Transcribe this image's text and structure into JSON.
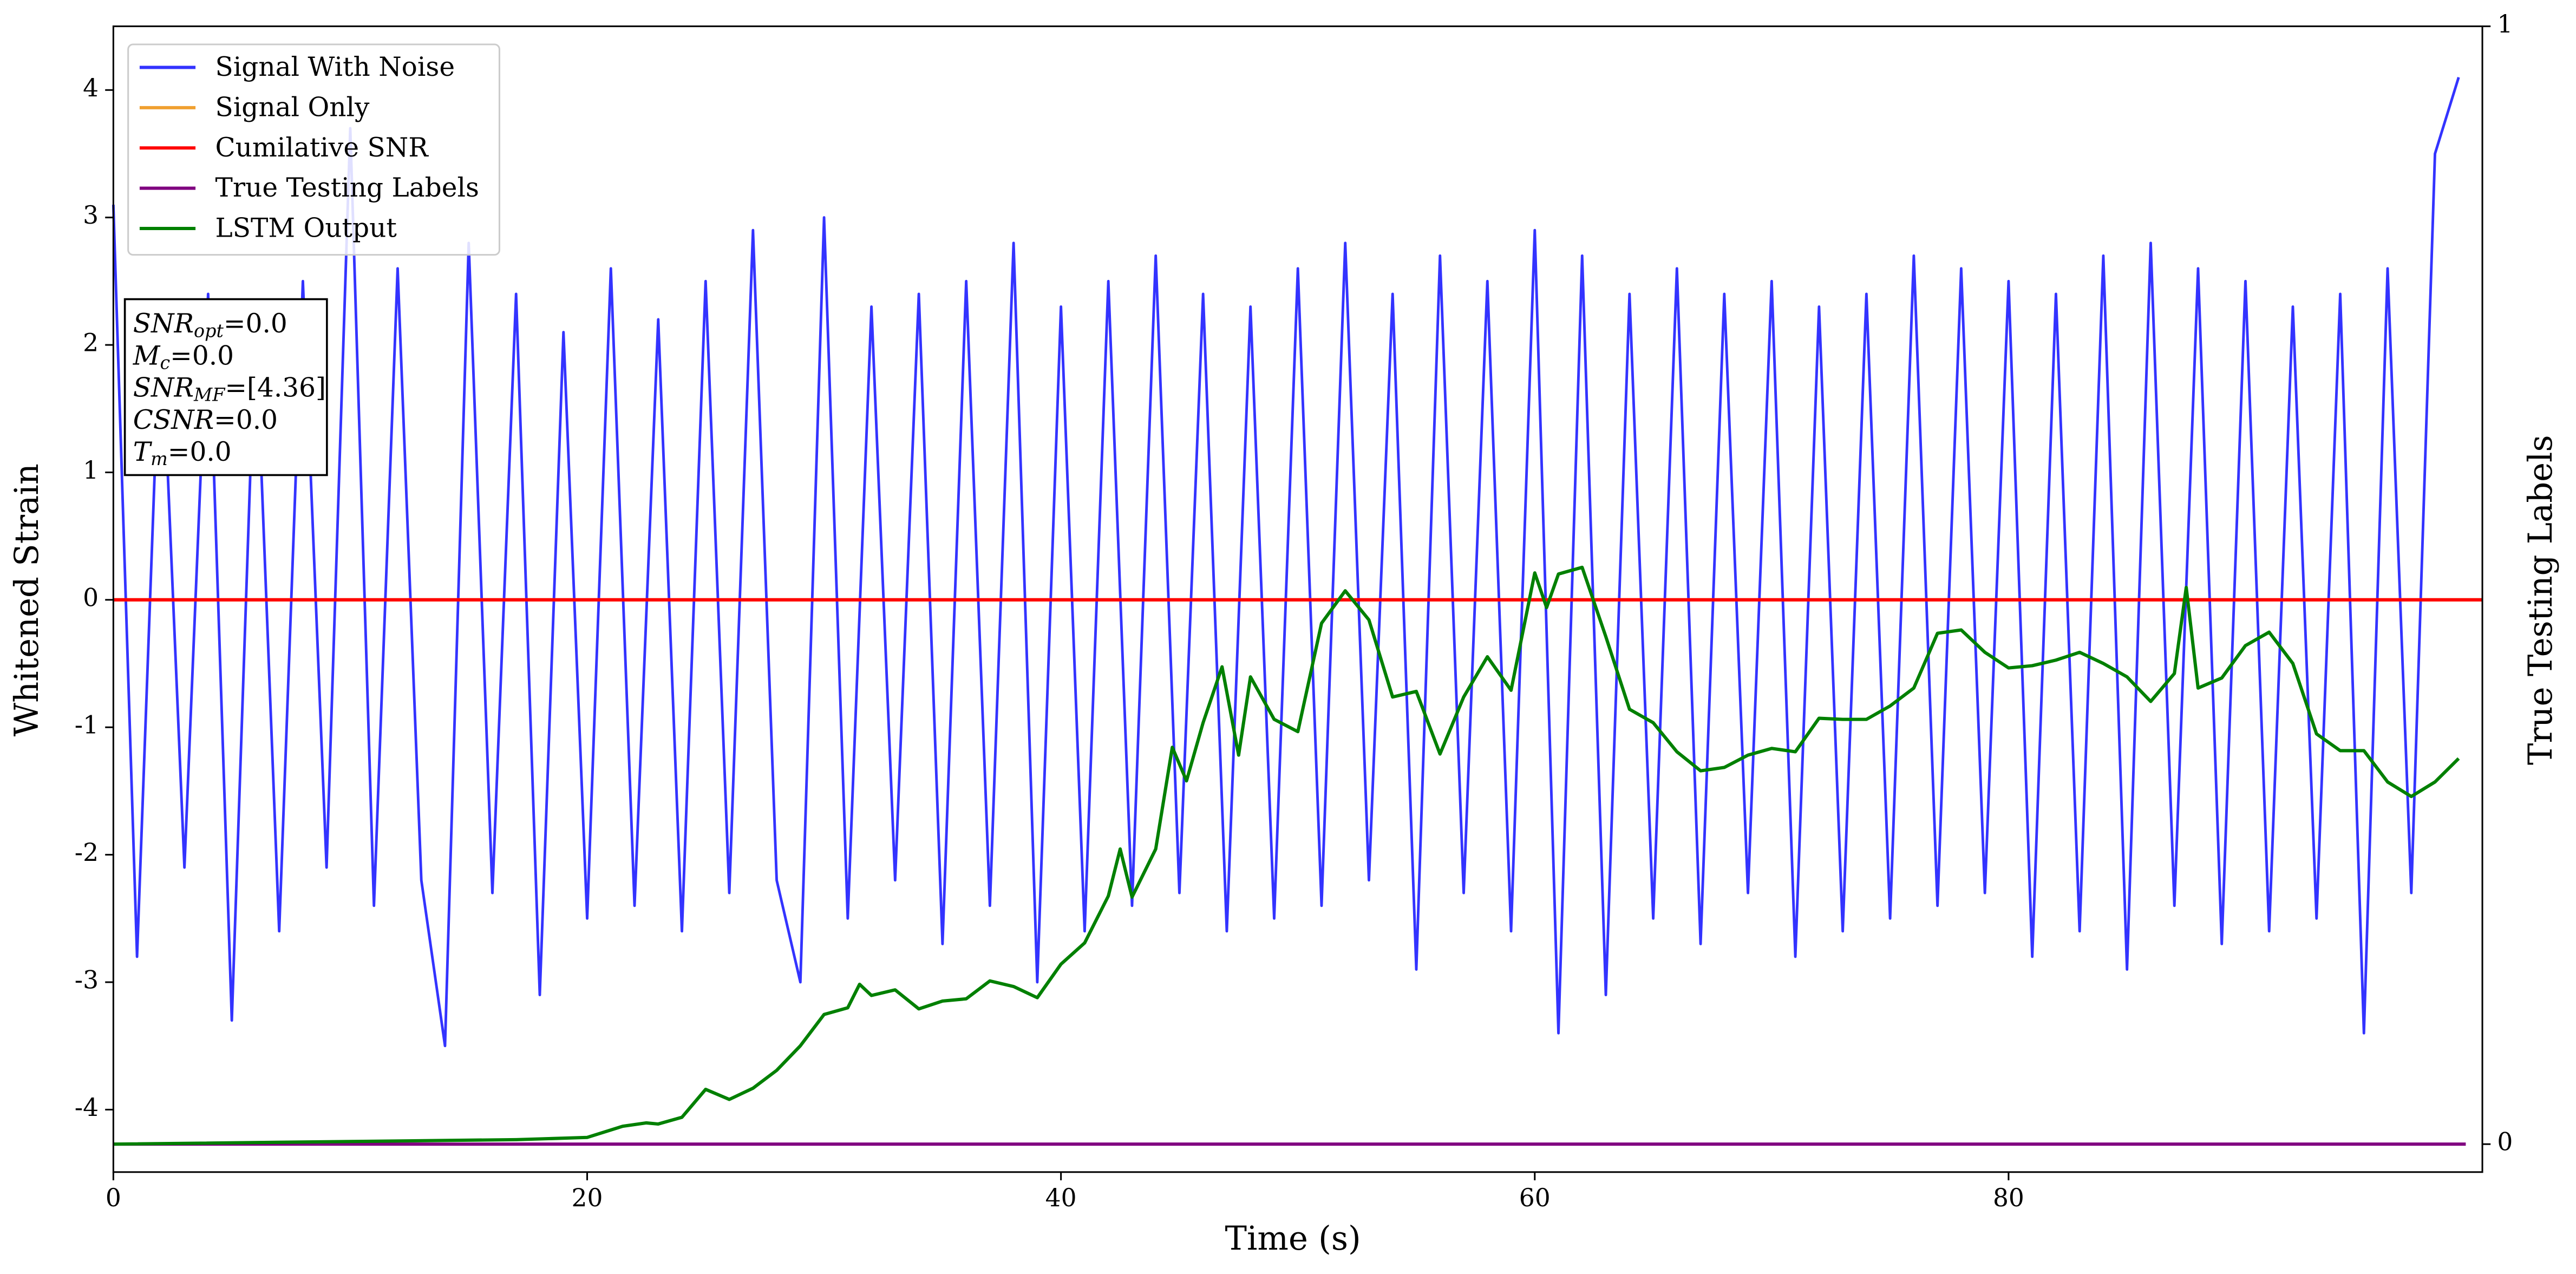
{
  "chart_data": {
    "type": "line",
    "xlabel": "Time (s)",
    "ylabel": "Whitened Strain",
    "y2label": "True Testing Labels",
    "xlim": [
      0,
      100
    ],
    "xticks": [
      0,
      20,
      40,
      60,
      80
    ],
    "ylim": [
      -4.49,
      4.5
    ],
    "yticks": [
      -4,
      -3,
      -2,
      -1,
      0,
      1,
      2,
      3,
      4
    ],
    "y2lim": [
      -0.025,
      1.0
    ],
    "y2ticks": [
      0,
      1
    ],
    "legend": "upper left",
    "annotations": [
      {
        "symbol": "SNR",
        "sub": "opt",
        "text": "=0.0"
      },
      {
        "symbol": "M",
        "sub": "c",
        "text": "=0.0"
      },
      {
        "symbol": "SNR",
        "sub": "MF",
        "text": "=[4.36]"
      },
      {
        "symbol": "CSNR",
        "sub": "",
        "text": "=0.0"
      },
      {
        "symbol": "T",
        "sub": "m",
        "text": "=0.0"
      }
    ],
    "series": [
      {
        "name": "Signal With Noise",
        "color": "#3333ff",
        "axis": "y",
        "x": [
          0,
          1,
          2,
          3,
          4,
          5,
          6,
          7,
          8,
          9,
          10,
          11,
          12,
          13,
          14,
          15,
          16,
          17,
          18,
          19,
          20,
          21,
          22,
          23,
          24,
          25,
          26,
          27,
          28,
          29,
          30,
          31,
          32,
          33,
          34,
          35,
          36,
          37,
          38,
          39,
          40,
          41,
          42,
          43,
          44,
          45,
          46,
          47,
          48,
          49,
          50,
          51,
          52,
          53,
          54,
          55,
          56,
          57,
          58,
          59,
          60,
          61,
          62,
          63,
          64,
          65,
          66,
          67,
          68,
          69,
          70,
          71,
          72,
          73,
          74,
          75,
          76,
          77,
          78,
          79,
          80,
          81,
          82,
          83,
          84,
          85,
          86,
          87,
          88,
          89,
          90,
          91,
          92,
          93,
          94,
          95,
          96,
          97,
          98,
          99
        ],
        "values": [
          3.1,
          -2.8,
          2.3,
          -2.1,
          2.4,
          -3.3,
          2.2,
          -2.6,
          2.5,
          -2.1,
          3.7,
          -2.4,
          2.6,
          -2.2,
          -3.5,
          2.8,
          -2.3,
          2.4,
          -3.1,
          2.1,
          -2.5,
          2.6,
          -2.4,
          2.2,
          -2.6,
          2.5,
          -2.3,
          2.9,
          -2.2,
          -3.0,
          3.0,
          -2.5,
          2.3,
          -2.2,
          2.4,
          -2.7,
          2.5,
          -2.4,
          2.8,
          -3.0,
          2.3,
          -2.6,
          2.5,
          -2.4,
          2.7,
          -2.3,
          2.4,
          -2.6,
          2.3,
          -2.5,
          2.6,
          -2.4,
          2.8,
          -2.2,
          2.4,
          -2.9,
          2.7,
          -2.3,
          2.5,
          -2.6,
          2.9,
          -3.4,
          2.7,
          -3.1,
          2.4,
          -2.5,
          2.6,
          -2.7,
          2.4,
          -2.3,
          2.5,
          -2.8,
          2.3,
          -2.6,
          2.4,
          -2.5,
          2.7,
          -2.4,
          2.6,
          -2.3,
          2.5,
          -2.8,
          2.4,
          -2.6,
          2.7,
          -2.9,
          2.8,
          -2.4,
          2.6,
          -2.7,
          2.5,
          -2.6,
          2.3,
          -2.5,
          2.4,
          -3.4,
          2.6,
          -2.3,
          3.5,
          4.1
        ]
      },
      {
        "name": "Signal Only",
        "color": "#f0a030",
        "axis": "y",
        "x": [
          0,
          100
        ],
        "values": [
          0,
          0
        ]
      },
      {
        "name": "Cumilative SNR",
        "color": "red",
        "axis": "y",
        "x": [
          0,
          100
        ],
        "values": [
          0,
          0
        ]
      },
      {
        "name": "True Testing Labels",
        "color": "purple",
        "axis": "y2",
        "x": [
          0,
          99.3
        ],
        "values": [
          0,
          0
        ]
      },
      {
        "name": "LSTM Output",
        "color": "green",
        "axis": "y2",
        "x": [
          0,
          17,
          20,
          21.5,
          22.5,
          23,
          24,
          25,
          26,
          27,
          28,
          29,
          30,
          31,
          31.5,
          32,
          33,
          34,
          35,
          36,
          37,
          38,
          39,
          40,
          41,
          42,
          42.5,
          43,
          44,
          44.7,
          45.3,
          46,
          46.8,
          47.5,
          48,
          49,
          50,
          51,
          52,
          53,
          54,
          55,
          56,
          57,
          58,
          59,
          60,
          60.5,
          61,
          62,
          63,
          64,
          65,
          66,
          67,
          68,
          69,
          70,
          71,
          72,
          73,
          74,
          75,
          76,
          77,
          78,
          79,
          80,
          81,
          82,
          83,
          84,
          85,
          86,
          87,
          87.5,
          88,
          89,
          90,
          91,
          92,
          93,
          94,
          95,
          96,
          97,
          98,
          99
        ],
        "values": [
          0,
          0.004,
          0.006,
          0.016,
          0.019,
          0.018,
          0.024,
          0.049,
          0.04,
          0.05,
          0.066,
          0.088,
          0.116,
          0.122,
          0.143,
          0.133,
          0.138,
          0.121,
          0.128,
          0.13,
          0.146,
          0.141,
          0.131,
          0.161,
          0.18,
          0.222,
          0.264,
          0.221,
          0.264,
          0.355,
          0.325,
          0.377,
          0.427,
          0.348,
          0.418,
          0.38,
          0.369,
          0.466,
          0.495,
          0.469,
          0.4,
          0.405,
          0.349,
          0.4,
          0.436,
          0.406,
          0.511,
          0.48,
          0.51,
          0.516,
          0.454,
          0.389,
          0.377,
          0.351,
          0.334,
          0.337,
          0.348,
          0.354,
          0.351,
          0.381,
          0.38,
          0.38,
          0.392,
          0.408,
          0.457,
          0.46,
          0.44,
          0.426,
          0.428,
          0.433,
          0.44,
          0.43,
          0.418,
          0.396,
          0.421,
          0.498,
          0.408,
          0.417,
          0.446,
          0.458,
          0.43,
          0.367,
          0.352,
          0.352,
          0.324,
          0.311,
          0.324,
          0.345
        ]
      }
    ]
  }
}
